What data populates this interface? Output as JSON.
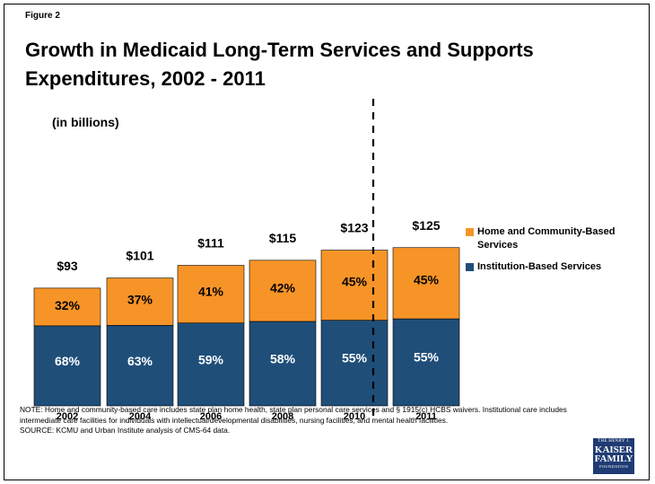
{
  "figure_label": "Figure 2",
  "title": "Growth in Medicaid Long-Term Services and Supports Expenditures, 2002 - 2011",
  "unit_label": "(in billions)",
  "chart_data": {
    "type": "bar",
    "stacked": true,
    "categories": [
      "2002",
      "2004",
      "2006",
      "2008",
      "2010",
      "2011"
    ],
    "totals": [
      93,
      101,
      111,
      115,
      123,
      125
    ],
    "total_labels": [
      "$93",
      "$101",
      "$111",
      "$115",
      "$123",
      "$125"
    ],
    "series": [
      {
        "name": "Institution-Based Services",
        "color": "#1f4e79",
        "percents": [
          68,
          63,
          59,
          58,
          55,
          55
        ],
        "labels": [
          "68%",
          "63%",
          "59%",
          "58%",
          "55%",
          "55%"
        ]
      },
      {
        "name": "Home and Community-Based Services",
        "color": "#f79427",
        "percents": [
          32,
          37,
          41,
          42,
          45,
          45
        ],
        "labels": [
          "32%",
          "37%",
          "41%",
          "42%",
          "45%",
          "45%"
        ]
      }
    ],
    "ylim": [
      0,
      140
    ],
    "grid": false,
    "legend_position": "right",
    "divider_before_category": "2011"
  },
  "legend": {
    "items": [
      {
        "label": "Home and Community-Based Services",
        "color": "#f79427"
      },
      {
        "label": "Institution-Based Services",
        "color": "#1f4e79"
      }
    ]
  },
  "notes": {
    "note_text": "NOTE: Home and community-based care includes state plan home health, state plan personal care services and § 1915(c) HCBS waivers. Institutional care includes intermediate care facilities for individuals with intellectual/developmental disabilities, nursing facilities, and mental health facilities.",
    "source_text": "SOURCE: KCMU and Urban Institute analysis of CMS-64 data."
  },
  "logo": {
    "line1": "THE HENRY J.",
    "line2": "KAISER",
    "line3": "FAMILY",
    "line4": "FOUNDATION"
  }
}
